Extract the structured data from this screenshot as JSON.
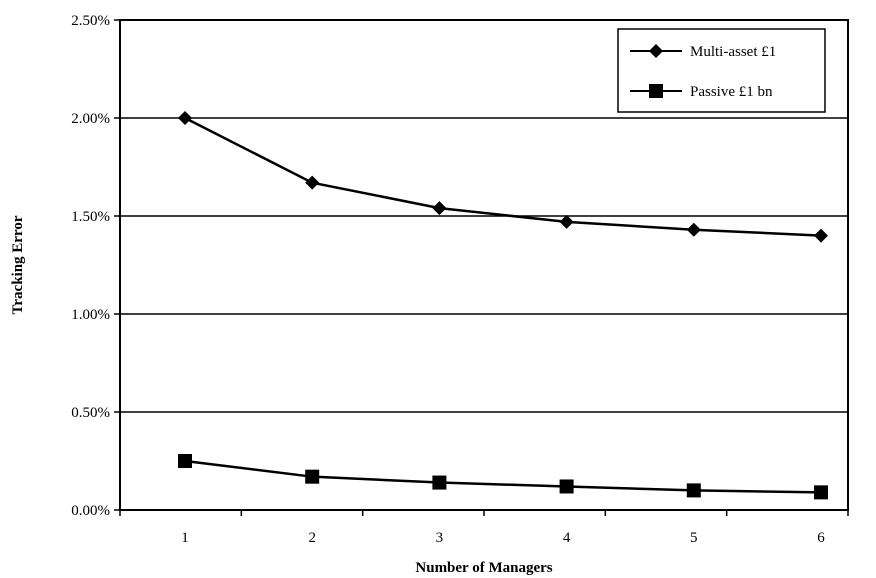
{
  "chart_data": {
    "type": "line",
    "title": "",
    "xlabel": "Number of Managers",
    "ylabel": "Tracking Error",
    "categories": [
      "1",
      "2",
      "3",
      "4",
      "5",
      "6"
    ],
    "ylim": [
      0,
      0.025
    ],
    "yticks": [
      0,
      0.005,
      0.01,
      0.015,
      0.02,
      0.025
    ],
    "ytick_labels": [
      "0.00%",
      "0.50%",
      "1.00%",
      "1.50%",
      "2.00%",
      "2.50%"
    ],
    "grid": "horizontal",
    "legend_position": "top-right",
    "series": [
      {
        "name": "Multi-asset £1",
        "marker": "diamond",
        "color": "#000000",
        "values": [
          0.02,
          0.0167,
          0.0154,
          0.0147,
          0.0143,
          0.014
        ]
      },
      {
        "name": "Passive £1 bn",
        "marker": "square",
        "color": "#000000",
        "values": [
          0.0025,
          0.0017,
          0.0014,
          0.0012,
          0.001,
          0.0009
        ]
      }
    ]
  }
}
